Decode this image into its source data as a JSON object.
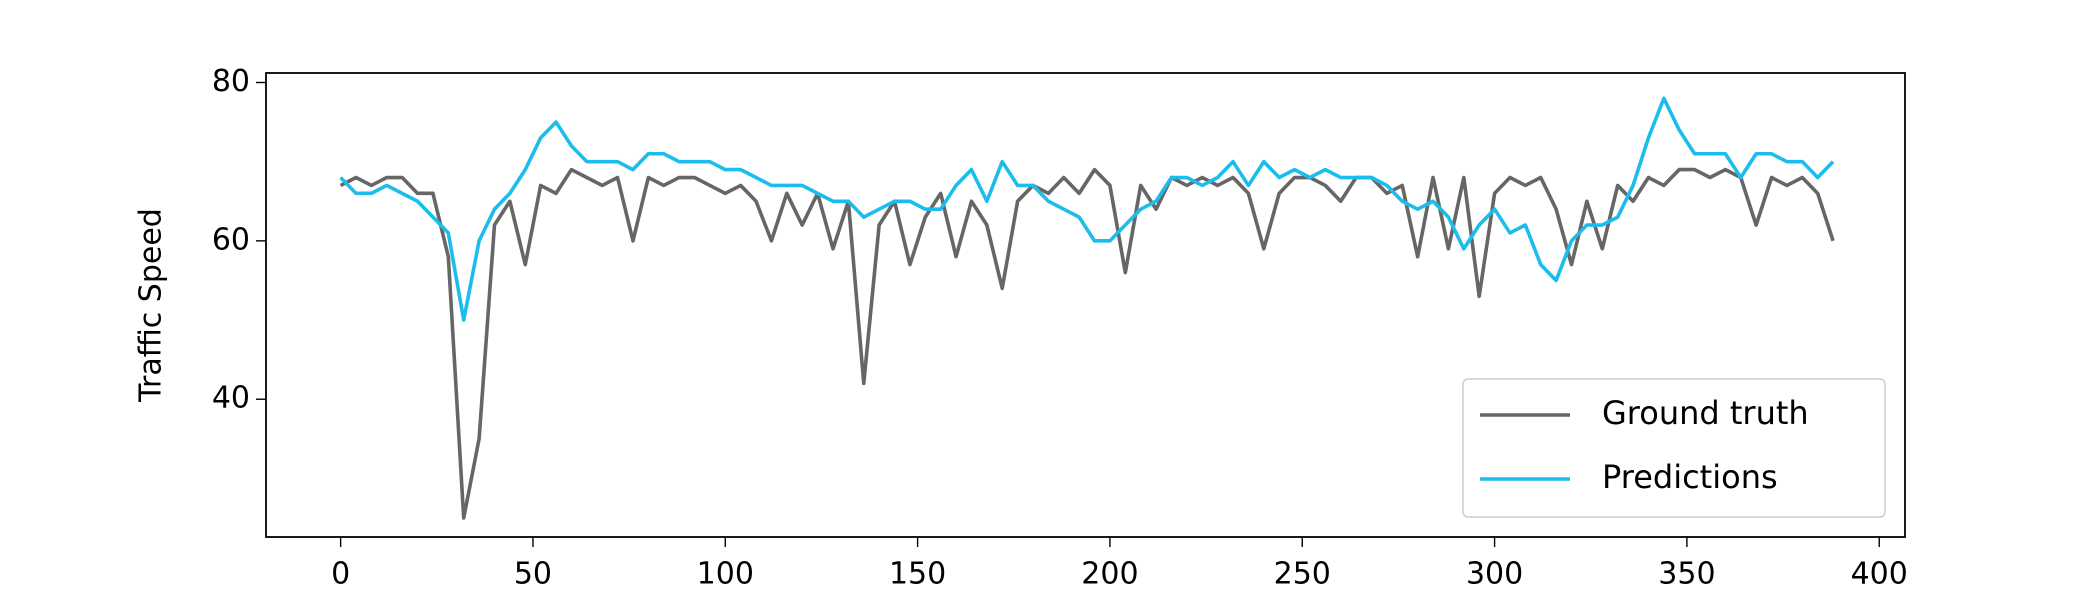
{
  "chart_data": {
    "type": "line",
    "ylabel": "Traffic Speed",
    "xlim": [
      -19.4,
      406.7
    ],
    "ylim": [
      22.6,
      81.2
    ],
    "xticks": [
      0,
      50,
      100,
      150,
      200,
      250,
      300,
      350,
      400
    ],
    "yticks": [
      40,
      60,
      80
    ],
    "legend": "lower right",
    "x": [
      0,
      4,
      8,
      12,
      16,
      20,
      24,
      28,
      32,
      36,
      40,
      44,
      48,
      52,
      56,
      60,
      64,
      68,
      72,
      76,
      80,
      84,
      88,
      92,
      96,
      100,
      104,
      108,
      112,
      116,
      120,
      124,
      128,
      132,
      136,
      140,
      144,
      148,
      152,
      156,
      160,
      164,
      168,
      172,
      176,
      180,
      184,
      188,
      192,
      196,
      200,
      204,
      208,
      212,
      216,
      220,
      224,
      228,
      232,
      236,
      240,
      244,
      248,
      252,
      256,
      260,
      264,
      268,
      272,
      276,
      280,
      284,
      288,
      292,
      296,
      300,
      304,
      308,
      312,
      316,
      320,
      324,
      328,
      332,
      336,
      340,
      344,
      348,
      352,
      356,
      360,
      364,
      368,
      372,
      376,
      380,
      384,
      388
    ],
    "series": [
      {
        "name": "Ground truth",
        "color": "#666666",
        "values": [
          67,
          68,
          67,
          68,
          68,
          66,
          66,
          58,
          25,
          35,
          62,
          65,
          57,
          67,
          66,
          69,
          68,
          67,
          68,
          60,
          68,
          67,
          68,
          68,
          67,
          66,
          67,
          65,
          60,
          66,
          62,
          66,
          59,
          65,
          42,
          62,
          65,
          57,
          63,
          66,
          58,
          65,
          62,
          54,
          65,
          67,
          66,
          68,
          66,
          69,
          67,
          56,
          67,
          64,
          68,
          67,
          68,
          67,
          68,
          66,
          59,
          66,
          68,
          68,
          67,
          65,
          68,
          68,
          66,
          67,
          58,
          68,
          59,
          68,
          53,
          66,
          68,
          67,
          68,
          64,
          57,
          65,
          59,
          67,
          65,
          68,
          67,
          69,
          69,
          68,
          69,
          68,
          62,
          68,
          67,
          68,
          66,
          60
        ]
      },
      {
        "name": "Predictions",
        "color": "#1cbdec",
        "values": [
          68,
          66,
          66,
          67,
          66,
          65,
          63,
          61,
          50,
          60,
          64,
          66,
          69,
          73,
          75,
          72,
          70,
          70,
          70,
          69,
          71,
          71,
          70,
          70,
          70,
          69,
          69,
          68,
          67,
          67,
          67,
          66,
          65,
          65,
          63,
          64,
          65,
          65,
          64,
          64,
          67,
          69,
          65,
          70,
          67,
          67,
          65,
          64,
          63,
          60,
          60,
          62,
          64,
          65,
          68,
          68,
          67,
          68,
          70,
          67,
          70,
          68,
          69,
          68,
          69,
          68,
          68,
          68,
          67,
          65,
          64,
          65,
          63,
          59,
          62,
          64,
          61,
          62,
          57,
          55,
          60,
          62,
          62,
          63,
          67,
          73,
          78,
          74,
          71,
          71,
          71,
          68,
          71,
          71,
          70,
          70,
          68,
          70
        ]
      }
    ]
  }
}
